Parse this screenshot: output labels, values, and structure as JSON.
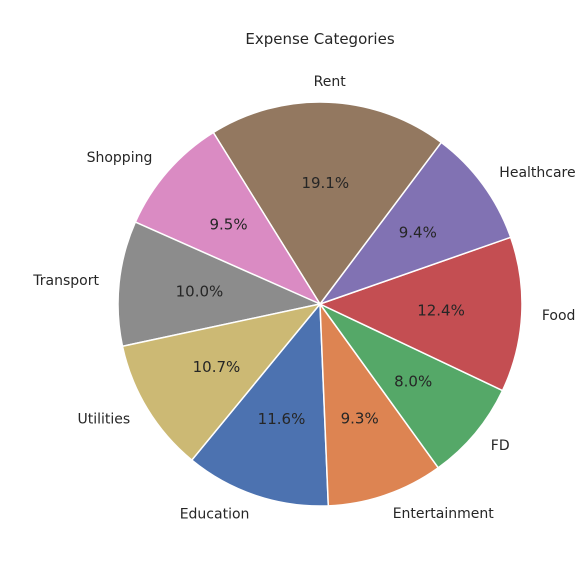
{
  "chart_data": {
    "type": "pie",
    "title": "Expense Categories",
    "start_angle_deg": 230.6,
    "direction": "counterclockwise",
    "slices": [
      {
        "label": "Education",
        "value": 11.6,
        "pct_label": "11.6%",
        "color": "#4c72b0"
      },
      {
        "label": "Entertainment",
        "value": 9.3,
        "pct_label": "9.3%",
        "color": "#dd8452"
      },
      {
        "label": "FD",
        "value": 8.0,
        "pct_label": "8.0%",
        "color": "#55a868"
      },
      {
        "label": "Food",
        "value": 12.4,
        "pct_label": "12.4%",
        "color": "#c44e52"
      },
      {
        "label": "Healthcare",
        "value": 9.4,
        "pct_label": "9.4%",
        "color": "#8172b3"
      },
      {
        "label": "Rent",
        "value": 19.1,
        "pct_label": "19.1%",
        "color": "#937860"
      },
      {
        "label": "Shopping",
        "value": 9.5,
        "pct_label": "9.5%",
        "color": "#da8bc3"
      },
      {
        "label": "Transport",
        "value": 10.0,
        "pct_label": "10.0%",
        "color": "#8c8c8c"
      },
      {
        "label": "Utilities",
        "value": 10.7,
        "pct_label": "10.7%",
        "color": "#ccb974"
      }
    ]
  }
}
